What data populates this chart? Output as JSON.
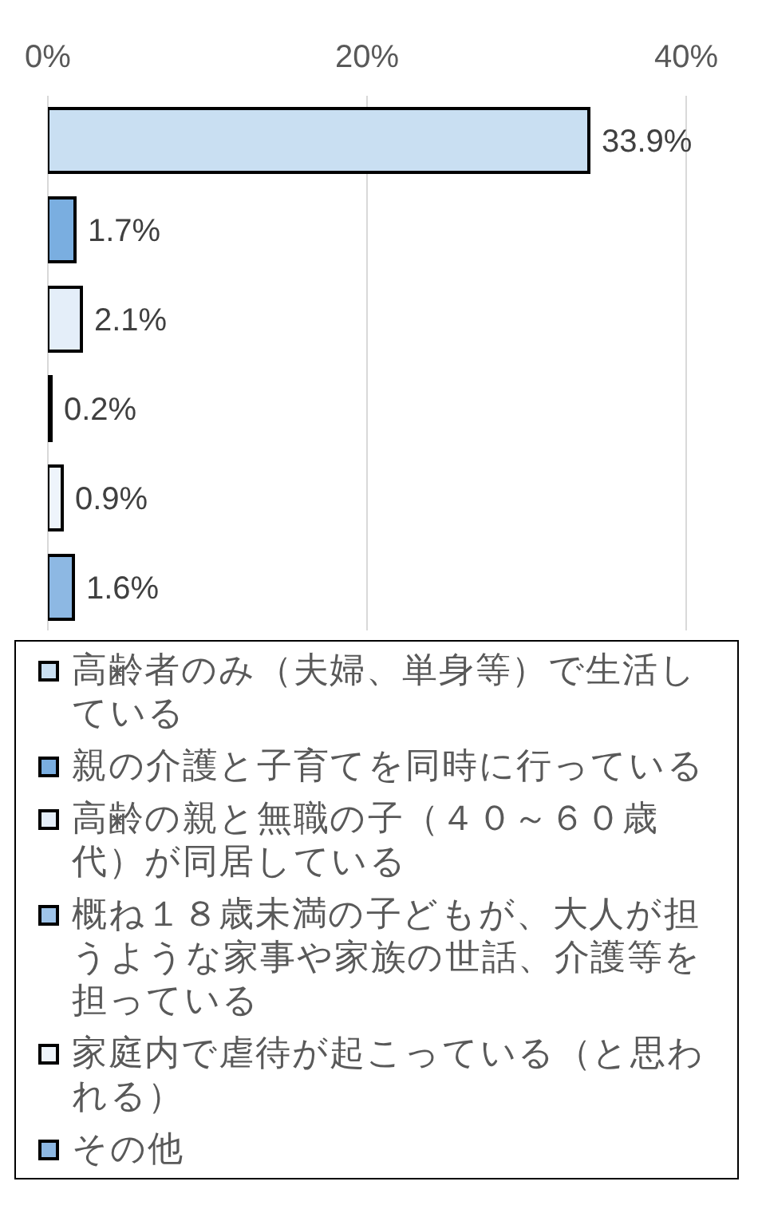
{
  "chart_data": {
    "type": "bar",
    "orientation": "horizontal",
    "categories": [
      null
    ],
    "series": [
      {
        "name": "高齢者のみ（夫婦、単身等）で生活している",
        "color": "#c9dff2",
        "values": [
          33.9
        ],
        "value_labels": [
          "33.9%"
        ]
      },
      {
        "name": "親の介護と子育てを同時に行っている",
        "color": "#7aaee0",
        "values": [
          1.7
        ],
        "value_labels": [
          "1.7%"
        ]
      },
      {
        "name": "高齢の親と無職の子（４０～６０歳代）が同居している",
        "color": "#e4eef9",
        "values": [
          2.1
        ],
        "value_labels": [
          "2.1%"
        ]
      },
      {
        "name": "概ね１８歳未満の子どもが、大人が担うような家事や家族の世話、介護等を担っている",
        "color": "#9fc4e9",
        "values": [
          0.2
        ],
        "value_labels": [
          "0.2%"
        ]
      },
      {
        "name": "家庭内で虐待が起こっている（と思われる）",
        "color": "#eef4fb",
        "values": [
          0.9
        ],
        "value_labels": [
          "0.9%"
        ]
      },
      {
        "name": "その他",
        "color": "#8db8e3",
        "values": [
          1.6
        ],
        "value_labels": [
          "1.6%"
        ]
      }
    ],
    "xlim": [
      0,
      40
    ],
    "xticks": [
      {
        "value": 0,
        "label": "0%"
      },
      {
        "value": 20,
        "label": "20%"
      },
      {
        "value": 40,
        "label": "40%"
      }
    ],
    "grid": "x",
    "legend": "bottom"
  }
}
